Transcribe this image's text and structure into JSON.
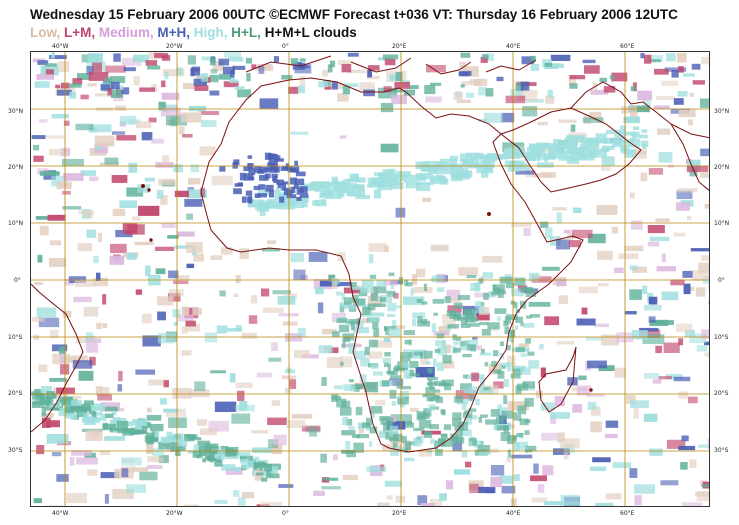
{
  "title": "Wednesday 15 February 2006 00UTC ©ECMWF Forecast t+036 VT: Thursday 16 February 2006 12UTC",
  "legend": [
    {
      "label": "Low,",
      "color": "#d9b9a3"
    },
    {
      "label": "L+M,",
      "color": "#c1446a"
    },
    {
      "label": "Medium,",
      "color": "#d4a0d8"
    },
    {
      "label": "M+H,",
      "color": "#4a5fb5"
    },
    {
      "label": "High,",
      "color": "#9fdede"
    },
    {
      "label": "H+L,",
      "color": "#4a9a72"
    },
    {
      "label": "H+M+L clouds",
      "color": "#111111"
    }
  ],
  "lon_labels": [
    "40°W",
    "20°W",
    "0°",
    "20°E",
    "40°E",
    "60°E"
  ],
  "lat_labels": [
    "30°N",
    "20°N",
    "10°N",
    "0°",
    "10°S",
    "20°S",
    "30°S"
  ],
  "colors": {
    "grid": "#b8860b",
    "coast": "#7a1010",
    "low": "#e3d0c2",
    "lm": "#c1446a",
    "medium": "#dcb8e0",
    "mh": "#4a5fb5",
    "high": "#9fdede",
    "hl": "#5fb09a",
    "hml": "#2f3f8f"
  }
}
